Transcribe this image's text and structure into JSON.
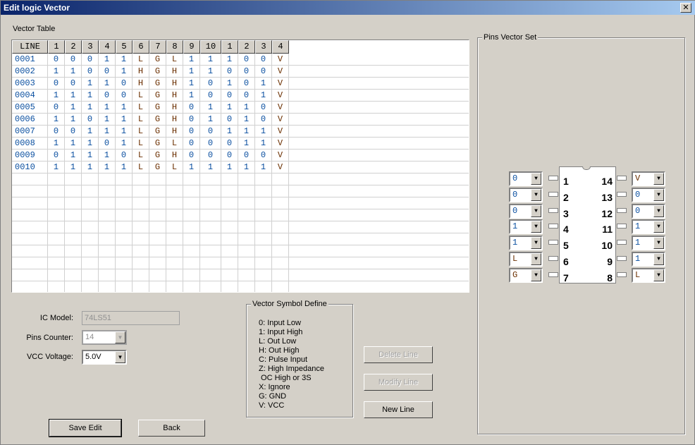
{
  "window": {
    "title": "Edit logic Vector",
    "close": "✕"
  },
  "vector_table": {
    "label": "Vector Table",
    "columns": [
      "LINE",
      "1",
      "2",
      "3",
      "4",
      "5",
      "6",
      "7",
      "8",
      "9",
      "10",
      "1",
      "2",
      "3",
      "4"
    ],
    "rows": [
      [
        "0001",
        "0",
        "0",
        "0",
        "1",
        "1",
        "L",
        "G",
        "L",
        "1",
        "1",
        "1",
        "0",
        "0",
        "V"
      ],
      [
        "0002",
        "1",
        "1",
        "0",
        "0",
        "1",
        "H",
        "G",
        "H",
        "1",
        "1",
        "0",
        "0",
        "0",
        "V"
      ],
      [
        "0003",
        "0",
        "0",
        "1",
        "1",
        "0",
        "H",
        "G",
        "H",
        "1",
        "0",
        "1",
        "0",
        "1",
        "V"
      ],
      [
        "0004",
        "1",
        "1",
        "1",
        "0",
        "0",
        "L",
        "G",
        "H",
        "1",
        "0",
        "0",
        "0",
        "1",
        "V"
      ],
      [
        "0005",
        "0",
        "1",
        "1",
        "1",
        "1",
        "L",
        "G",
        "H",
        "0",
        "1",
        "1",
        "1",
        "0",
        "V"
      ],
      [
        "0006",
        "1",
        "1",
        "0",
        "1",
        "1",
        "L",
        "G",
        "H",
        "0",
        "1",
        "0",
        "1",
        "0",
        "V"
      ],
      [
        "0007",
        "0",
        "0",
        "1",
        "1",
        "1",
        "L",
        "G",
        "H",
        "0",
        "0",
        "1",
        "1",
        "1",
        "V"
      ],
      [
        "0008",
        "1",
        "1",
        "1",
        "0",
        "1",
        "L",
        "G",
        "L",
        "0",
        "0",
        "0",
        "1",
        "1",
        "V"
      ],
      [
        "0009",
        "0",
        "1",
        "1",
        "1",
        "0",
        "L",
        "G",
        "H",
        "0",
        "0",
        "0",
        "0",
        "0",
        "V"
      ],
      [
        "0010",
        "1",
        "1",
        "1",
        "1",
        "1",
        "L",
        "G",
        "L",
        "1",
        "1",
        "1",
        "1",
        "1",
        "V"
      ]
    ]
  },
  "form": {
    "ic_model_label": "IC Model:",
    "ic_model": "74LS51",
    "pins_counter_label": "Pins Counter:",
    "pins_counter": "14",
    "vcc_label": "VCC Voltage:",
    "vcc": "5.0V"
  },
  "symbols": {
    "title": "Vector Symbol Define",
    "items": [
      "0: Input Low",
      "1: Input High",
      "L: Out Low",
      "H: Out High",
      "C: Pulse Input",
      "Z: High Impedance",
      " OC High or 3S",
      "X: Ignore",
      "G: GND",
      "V: VCC"
    ]
  },
  "buttons": {
    "delete": "Delete Line",
    "modify": "Modify Line",
    "new": "New Line",
    "save": "Save Edit",
    "back": "Back"
  },
  "pins": {
    "title": "Pins Vector Set",
    "left": [
      {
        "n": "1",
        "v": "0"
      },
      {
        "n": "2",
        "v": "0"
      },
      {
        "n": "3",
        "v": "0"
      },
      {
        "n": "4",
        "v": "1"
      },
      {
        "n": "5",
        "v": "1"
      },
      {
        "n": "6",
        "v": "L"
      },
      {
        "n": "7",
        "v": "G"
      }
    ],
    "right": [
      {
        "n": "14",
        "v": "V"
      },
      {
        "n": "13",
        "v": "0"
      },
      {
        "n": "12",
        "v": "0"
      },
      {
        "n": "11",
        "v": "1"
      },
      {
        "n": "10",
        "v": "1"
      },
      {
        "n": "9",
        "v": "1"
      },
      {
        "n": "8",
        "v": "L"
      }
    ]
  }
}
